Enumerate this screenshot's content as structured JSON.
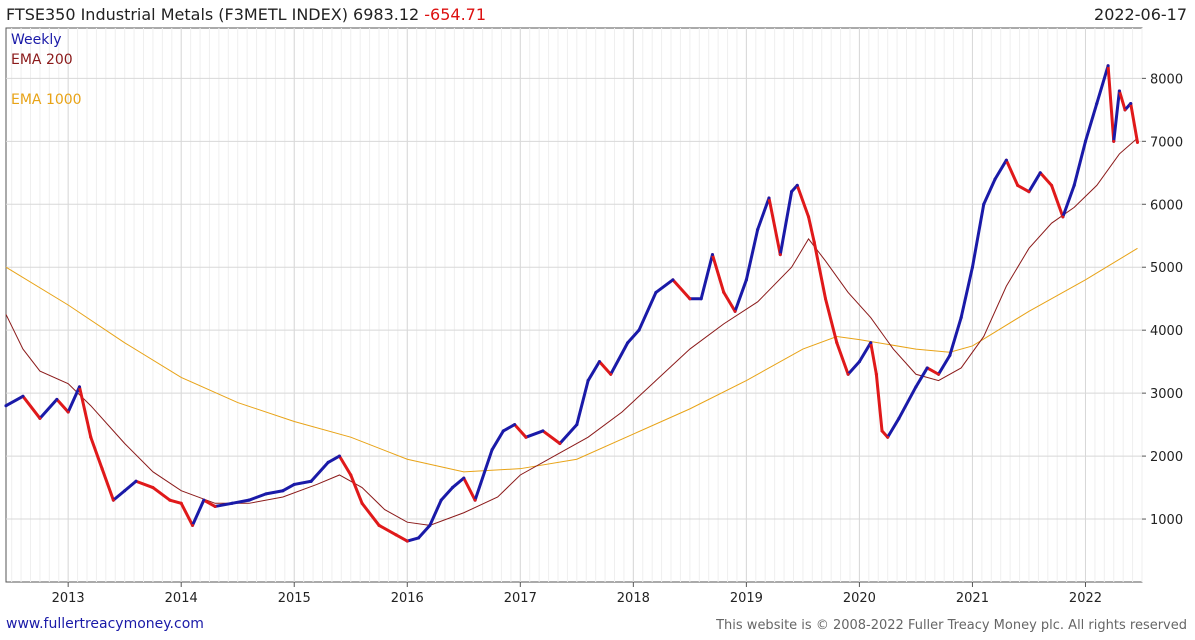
{
  "header": {
    "title": "FTSE350 Industrial Metals (F3METL INDEX) 6983.12",
    "change": "-654.71",
    "date": "2022-06-17"
  },
  "legend": {
    "weekly": "Weekly",
    "ema200": "EMA 200",
    "ema1000": "EMA 1000"
  },
  "footer": {
    "site": "www.fullertreacymoney.com",
    "copyright": "This website is © 2008-2022 Fuller Treacy Money plc. All rights reserved"
  },
  "colors": {
    "up": "#1a1aa8",
    "down": "#e0191a",
    "ema200": "#8b1a1a",
    "ema1000": "#e8a317",
    "grid": "#d8d8d8"
  },
  "chart_data": {
    "type": "line",
    "title": "FTSE350 Industrial Metals (F3METL INDEX)",
    "xlabel": "",
    "ylabel": "",
    "xlim": [
      2012.45,
      2022.5
    ],
    "ylim": [
      0,
      8800
    ],
    "x_ticks": [
      2013,
      2014,
      2015,
      2016,
      2017,
      2018,
      2019,
      2020,
      2021,
      2022
    ],
    "y_ticks": [
      1000,
      2000,
      3000,
      4000,
      5000,
      6000,
      7000,
      8000
    ],
    "legend_position": "top-left",
    "series": [
      {
        "name": "Weekly",
        "x": [
          2012.45,
          2012.6,
          2012.75,
          2012.9,
          2013.0,
          2013.1,
          2013.2,
          2013.3,
          2013.4,
          2013.5,
          2013.6,
          2013.75,
          2013.9,
          2014.0,
          2014.1,
          2014.2,
          2014.3,
          2014.45,
          2014.6,
          2014.75,
          2014.9,
          2015.0,
          2015.15,
          2015.3,
          2015.4,
          2015.5,
          2015.6,
          2015.75,
          2015.9,
          2016.0,
          2016.1,
          2016.2,
          2016.3,
          2016.4,
          2016.5,
          2016.6,
          2016.75,
          2016.85,
          2016.95,
          2017.05,
          2017.2,
          2017.35,
          2017.5,
          2017.6,
          2017.7,
          2017.8,
          2017.95,
          2018.05,
          2018.2,
          2018.35,
          2018.5,
          2018.6,
          2018.7,
          2018.8,
          2018.9,
          2019.0,
          2019.1,
          2019.2,
          2019.3,
          2019.4,
          2019.45,
          2019.55,
          2019.6,
          2019.7,
          2019.8,
          2019.9,
          2020.0,
          2020.1,
          2020.15,
          2020.2,
          2020.25,
          2020.35,
          2020.5,
          2020.6,
          2020.7,
          2020.8,
          2020.9,
          2021.0,
          2021.1,
          2021.2,
          2021.3,
          2021.4,
          2021.5,
          2021.6,
          2021.7,
          2021.8,
          2021.9,
          2022.0,
          2022.1,
          2022.2,
          2022.25,
          2022.3,
          2022.35,
          2022.4,
          2022.46
        ],
        "values": [
          2800,
          2950,
          2600,
          2900,
          2700,
          3100,
          2300,
          1800,
          1300,
          1450,
          1600,
          1500,
          1300,
          1250,
          900,
          1300,
          1200,
          1250,
          1300,
          1400,
          1450,
          1550,
          1600,
          1900,
          2000,
          1700,
          1250,
          900,
          750,
          650,
          700,
          900,
          1300,
          1500,
          1650,
          1300,
          2100,
          2400,
          2500,
          2300,
          2400,
          2200,
          2500,
          3200,
          3500,
          3300,
          3800,
          4000,
          4600,
          4800,
          4500,
          4500,
          5200,
          4600,
          4300,
          4800,
          5600,
          6100,
          5200,
          6200,
          6300,
          5800,
          5400,
          4500,
          3800,
          3300,
          3500,
          3800,
          3300,
          2400,
          2300,
          2600,
          3100,
          3400,
          3300,
          3600,
          4200,
          5000,
          6000,
          6400,
          6700,
          6300,
          6200,
          6500,
          6300,
          5800,
          6300,
          7000,
          7600,
          8200,
          7000,
          7800,
          7500,
          7600,
          6983
        ]
      },
      {
        "name": "EMA 200",
        "x": [
          2012.45,
          2012.6,
          2012.75,
          2013.0,
          2013.2,
          2013.5,
          2013.75,
          2014.0,
          2014.3,
          2014.6,
          2014.9,
          2015.2,
          2015.4,
          2015.6,
          2015.8,
          2016.0,
          2016.2,
          2016.5,
          2016.8,
          2017.0,
          2017.3,
          2017.6,
          2017.9,
          2018.2,
          2018.5,
          2018.8,
          2019.1,
          2019.4,
          2019.55,
          2019.7,
          2019.9,
          2020.1,
          2020.3,
          2020.5,
          2020.7,
          2020.9,
          2021.1,
          2021.3,
          2021.5,
          2021.7,
          2021.9,
          2022.1,
          2022.3,
          2022.46
        ],
        "values": [
          4250,
          3700,
          3350,
          3150,
          2800,
          2200,
          1750,
          1450,
          1250,
          1250,
          1350,
          1550,
          1700,
          1500,
          1150,
          950,
          900,
          1100,
          1350,
          1700,
          2000,
          2300,
          2700,
          3200,
          3700,
          4100,
          4450,
          5000,
          5450,
          5100,
          4600,
          4200,
          3700,
          3300,
          3200,
          3400,
          3900,
          4700,
          5300,
          5700,
          5950,
          6300,
          6800,
          7050
        ]
      },
      {
        "name": "EMA 1000",
        "x": [
          2012.45,
          2013.0,
          2013.5,
          2014.0,
          2014.5,
          2015.0,
          2015.5,
          2016.0,
          2016.5,
          2017.0,
          2017.5,
          2018.0,
          2018.5,
          2019.0,
          2019.5,
          2019.8,
          2020.0,
          2020.5,
          2020.8,
          2021.0,
          2021.5,
          2022.0,
          2022.46
        ],
        "values": [
          5000,
          4400,
          3800,
          3250,
          2850,
          2550,
          2300,
          1950,
          1750,
          1800,
          1950,
          2350,
          2750,
          3200,
          3700,
          3900,
          3850,
          3700,
          3650,
          3750,
          4300,
          4800,
          5300
        ]
      }
    ]
  }
}
